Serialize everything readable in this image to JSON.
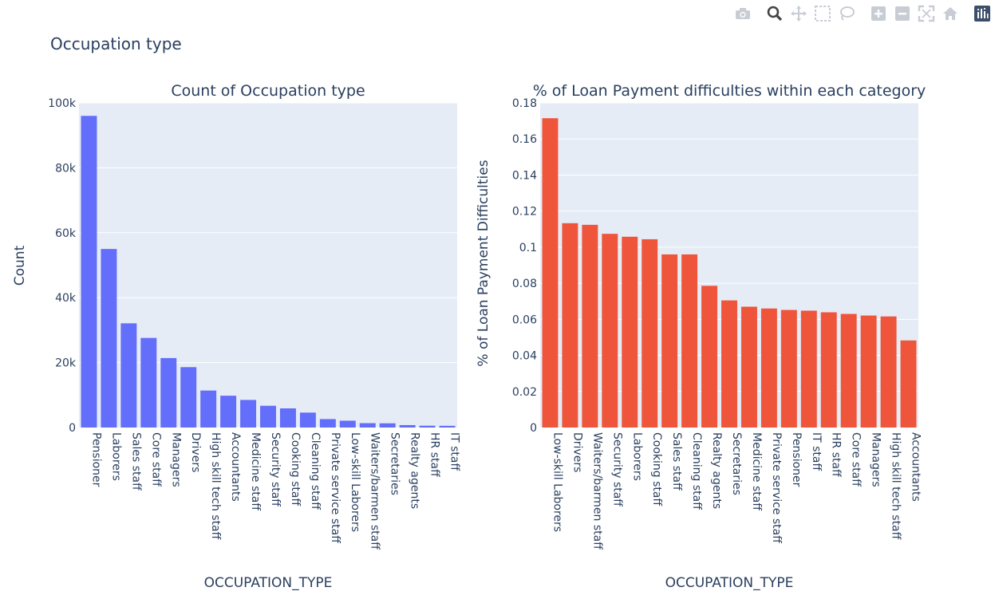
{
  "figure": {
    "title": "Occupation type"
  },
  "modebar": {
    "icons": [
      "camera-icon",
      "zoom-icon",
      "pan-icon",
      "box-select-icon",
      "lasso-select-icon",
      "zoom-in-icon",
      "zoom-out-icon",
      "autoscale-icon",
      "reset-axes-icon",
      "plotly-logo-icon"
    ]
  },
  "chart_data": [
    {
      "type": "bar",
      "title": "Count of Occupation type",
      "xlabel": "OCCUPATION_TYPE",
      "ylabel": "Count",
      "ylim": [
        0,
        100000
      ],
      "yticks": [
        0,
        20000,
        40000,
        60000,
        80000,
        100000
      ],
      "ytick_labels": [
        "0",
        "20k",
        "40k",
        "60k",
        "80k",
        "100k"
      ],
      "grid": true,
      "color": "#636efa",
      "categories": [
        "Pensioner",
        "Laborers",
        "Sales staff",
        "Core staff",
        "Managers",
        "Drivers",
        "High skill tech staff",
        "Accountants",
        "Medicine staff",
        "Security staff",
        "Cooking staff",
        "Cleaning staff",
        "Private service staff",
        "Low-skill Laborers",
        "Waiters/barmen staff",
        "Secretaries",
        "Realty agents",
        "HR staff",
        "IT staff"
      ],
      "values": [
        96000,
        55000,
        32100,
        27600,
        21400,
        18600,
        11400,
        9800,
        8500,
        6700,
        5900,
        4600,
        2600,
        2100,
        1350,
        1300,
        750,
        560,
        530
      ]
    },
    {
      "type": "bar",
      "title": "% of Loan Payment difficulties within each category",
      "xlabel": "OCCUPATION_TYPE",
      "ylabel": "% of Loan Payment Difficulties",
      "ylim": [
        0,
        0.18
      ],
      "yticks": [
        0,
        0.02,
        0.04,
        0.06,
        0.08,
        0.1,
        0.12,
        0.14,
        0.16,
        0.18
      ],
      "ytick_labels": [
        "0",
        "0.02",
        "0.04",
        "0.06",
        "0.08",
        "0.1",
        "0.12",
        "0.14",
        "0.16",
        "0.18"
      ],
      "grid": true,
      "color": "#ef553b",
      "categories": [
        "Low-skill Laborers",
        "Drivers",
        "Waiters/barmen staff",
        "Security staff",
        "Laborers",
        "Cooking staff",
        "Sales staff",
        "Cleaning staff",
        "Realty agents",
        "Secretaries",
        "Medicine staff",
        "Private service staff",
        "Pensioner",
        "IT staff",
        "HR staff",
        "Core staff",
        "Managers",
        "High skill tech staff",
        "Accountants"
      ],
      "values": [
        0.1715,
        0.1133,
        0.1124,
        0.1074,
        0.1058,
        0.1044,
        0.096,
        0.096,
        0.0786,
        0.0705,
        0.067,
        0.066,
        0.0652,
        0.0648,
        0.0639,
        0.063,
        0.0621,
        0.0616,
        0.0483
      ]
    }
  ]
}
